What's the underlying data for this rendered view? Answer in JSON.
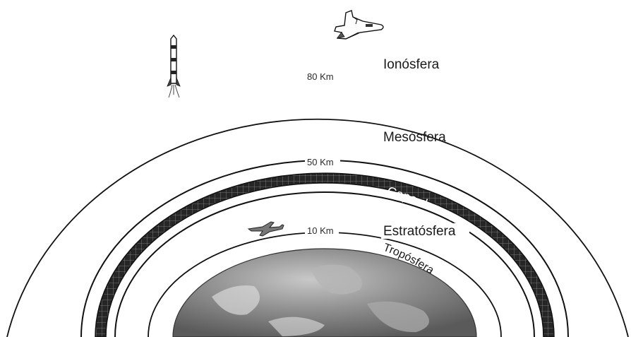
{
  "layers": {
    "ionosphere": "Ionósfera",
    "mesosphere": "Mesósfera",
    "ozone_layer": "Capa de ozono",
    "stratosphere": "Estratósfera",
    "troposphere": "Tropósfera"
  },
  "altitudes": {
    "outer": "80 Km",
    "middle": "50 Km",
    "inner": "10 Km"
  },
  "icons": {
    "shuttle": "space-shuttle-icon",
    "rocket": "rocket-icon",
    "jet": "jet-plane-icon",
    "earth": "earth-globe-icon"
  },
  "colors": {
    "ozone_band": "#222222",
    "line": "#111111",
    "earth": "#8a8a8a"
  }
}
